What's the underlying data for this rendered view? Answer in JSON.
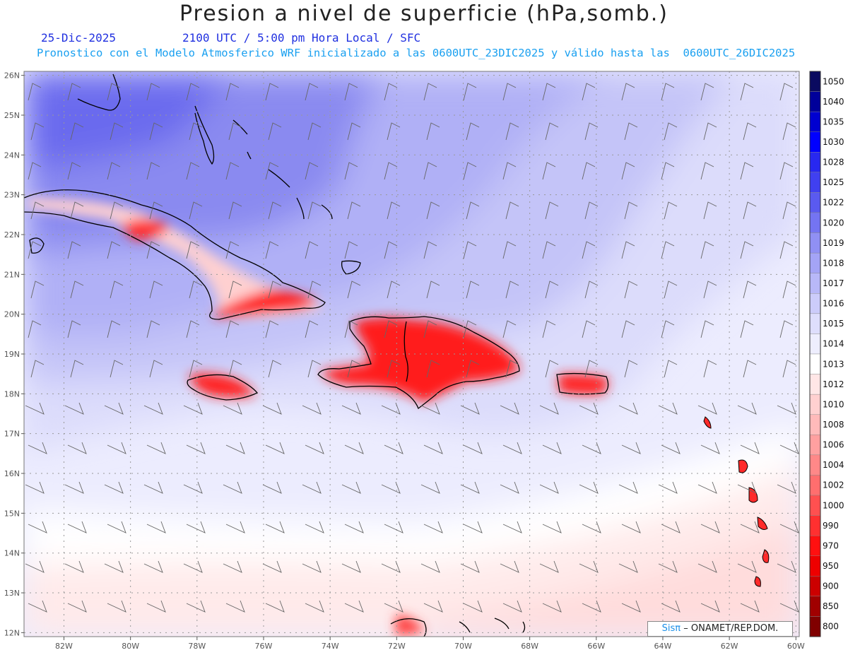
{
  "header": {
    "title": "Presion a nivel de superficie (hPa,somb.)",
    "date": "25-Dic-2025",
    "time_line": "2100 UTC / 5:00 pm Hora Local / SFC",
    "model_line": "Pronostico con el Modelo Atmosferico WRF inicializado a las 0600UTC_23DIC2025 y válido hasta las  0600UTC_26DIC2025"
  },
  "map": {
    "lon_range": [
      -83.2,
      -59.9
    ],
    "lat_range": [
      11.9,
      26.1
    ],
    "lon_ticks": [
      "82W",
      "80W",
      "78W",
      "76W",
      "74W",
      "72W",
      "70W",
      "68W",
      "66W",
      "64W",
      "62W",
      "60W"
    ],
    "lon_tick_values": [
      -82,
      -80,
      -78,
      -76,
      -74,
      -72,
      -70,
      -68,
      -66,
      -64,
      -62,
      -60
    ],
    "lat_ticks": [
      "12N",
      "13N",
      "14N",
      "15N",
      "16N",
      "17N",
      "18N",
      "19N",
      "20N",
      "21N",
      "22N",
      "23N",
      "24N",
      "25N",
      "26N"
    ],
    "lat_tick_values": [
      12,
      13,
      14,
      15,
      16,
      17,
      18,
      19,
      20,
      21,
      22,
      23,
      24,
      25,
      26
    ],
    "grid": true,
    "field": "surface pressure (hPa)",
    "wind_barbs": true
  },
  "colorbar": {
    "labels": [
      "1050",
      "1040",
      "1035",
      "1030",
      "1028",
      "1025",
      "1022",
      "1020",
      "1019",
      "1018",
      "1017",
      "1016",
      "1015",
      "1014",
      "1013",
      "1012",
      "1010",
      "1008",
      "1006",
      "1004",
      "1002",
      "1000",
      "990",
      "970",
      "950",
      "900",
      "850",
      "800"
    ],
    "colors": [
      "#0a0a60",
      "#00009a",
      "#0000d0",
      "#0000ff",
      "#2828f0",
      "#4040f0",
      "#5a5af0",
      "#7474f2",
      "#9090f4",
      "#a4a4f6",
      "#b8b8f8",
      "#ccccfa",
      "#dedefc",
      "#eeeefe",
      "#ffffff",
      "#ffe6e6",
      "#ffd0d0",
      "#ffbaba",
      "#ffa0a0",
      "#ff8888",
      "#ff6e6e",
      "#ff5050",
      "#ff3030",
      "#ff1010",
      "#ee0000",
      "#cc0000",
      "#a00000",
      "#800000"
    ]
  },
  "credit": {
    "logo": "Sisπ",
    "text": "– ONAMET/REP.DOM."
  }
}
